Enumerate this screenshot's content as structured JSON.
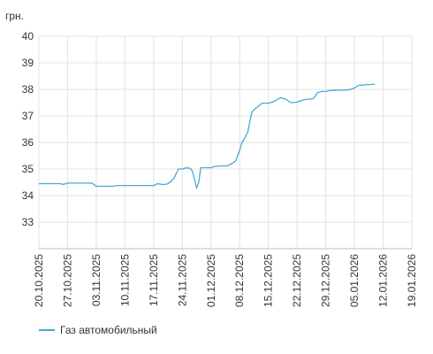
{
  "chart_data": {
    "type": "line",
    "unit_label": "грн.",
    "ylim": [
      32,
      40
    ],
    "y_ticks": [
      33,
      34,
      35,
      36,
      37,
      38,
      39,
      40
    ],
    "x_tick_labels": [
      "20.10.2025",
      "27.10.2025",
      "03.11.2025",
      "10.11.2025",
      "17.11.2025",
      "24.11.2025",
      "01.12.2025",
      "08.12.2025",
      "15.12.2025",
      "22.12.2025",
      "29.12.2025",
      "05.01.2026",
      "12.01.2026",
      "19.01.2026"
    ],
    "x_tick_days": [
      0,
      7,
      14,
      21,
      28,
      35,
      42,
      49,
      56,
      63,
      70,
      77,
      84,
      91
    ],
    "grid": true,
    "legend_position": "bottom-left",
    "series": [
      {
        "name": "Газ автомобильный",
        "color": "#4aa8d4",
        "points": [
          [
            0,
            34.45
          ],
          [
            2,
            34.45
          ],
          [
            4,
            34.45
          ],
          [
            5,
            34.45
          ],
          [
            6,
            34.42
          ],
          [
            7,
            34.47
          ],
          [
            9,
            34.47
          ],
          [
            11,
            34.47
          ],
          [
            13,
            34.47
          ],
          [
            14,
            34.35
          ],
          [
            16,
            34.35
          ],
          [
            18,
            34.35
          ],
          [
            19,
            34.38
          ],
          [
            21,
            34.38
          ],
          [
            24,
            34.38
          ],
          [
            27,
            34.38
          ],
          [
            28,
            34.38
          ],
          [
            29,
            34.45
          ],
          [
            30,
            34.42
          ],
          [
            31,
            34.42
          ],
          [
            32,
            34.5
          ],
          [
            33,
            34.65
          ],
          [
            34,
            35.0
          ],
          [
            35,
            35.0
          ],
          [
            36,
            35.05
          ],
          [
            37,
            35.02
          ],
          [
            37.5,
            34.9
          ],
          [
            38,
            34.6
          ],
          [
            38.5,
            34.28
          ],
          [
            39,
            34.5
          ],
          [
            39.5,
            35.05
          ],
          [
            40,
            35.05
          ],
          [
            42,
            35.05
          ],
          [
            43,
            35.1
          ],
          [
            45,
            35.12
          ],
          [
            46,
            35.12
          ],
          [
            47,
            35.2
          ],
          [
            48,
            35.3
          ],
          [
            48.5,
            35.5
          ],
          [
            49,
            35.7
          ],
          [
            49.5,
            35.98
          ],
          [
            50,
            36.1
          ],
          [
            51,
            36.4
          ],
          [
            51.5,
            36.8
          ],
          [
            52,
            37.15
          ],
          [
            53,
            37.3
          ],
          [
            54,
            37.42
          ],
          [
            54.5,
            37.48
          ],
          [
            56,
            37.48
          ],
          [
            57,
            37.52
          ],
          [
            58,
            37.6
          ],
          [
            58.5,
            37.65
          ],
          [
            59,
            37.68
          ],
          [
            60,
            37.65
          ],
          [
            61,
            37.55
          ],
          [
            61.5,
            37.5
          ],
          [
            63,
            37.52
          ],
          [
            64,
            37.58
          ],
          [
            65,
            37.62
          ],
          [
            67,
            37.65
          ],
          [
            67.5,
            37.75
          ],
          [
            68,
            37.88
          ],
          [
            69,
            37.92
          ],
          [
            70,
            37.92
          ],
          [
            71,
            37.96
          ],
          [
            73,
            37.97
          ],
          [
            75,
            37.97
          ],
          [
            76,
            38.0
          ],
          [
            77,
            38.05
          ],
          [
            78,
            38.15
          ],
          [
            80,
            38.18
          ],
          [
            81,
            38.18
          ],
          [
            82,
            38.2
          ]
        ]
      }
    ]
  }
}
